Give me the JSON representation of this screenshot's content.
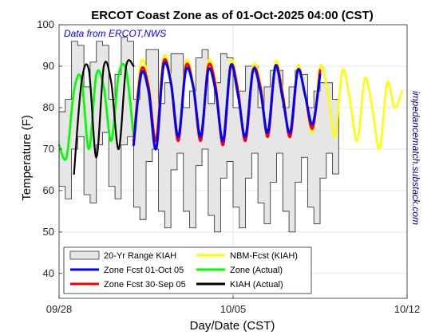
{
  "chart_data": {
    "type": "line",
    "title": "ERCOT Coast Zone as of 01-Oct-2025 04:00 (CST)",
    "xlabel": "Day/Date (CST)",
    "ylabel": "Temperature (F)",
    "annotation": "Data from ERCOT,NWS",
    "side_text": "impedancematch.substack.com",
    "x_ticks": [
      "09/28",
      "10/05",
      "10/12"
    ],
    "y_ticks": [
      40,
      50,
      60,
      70,
      80,
      90,
      100
    ],
    "xlim_days": [
      0,
      14
    ],
    "ylim": [
      34,
      100
    ],
    "grid": true,
    "legend_position": "bottom-left",
    "legend": [
      {
        "label": "20-Yr Range KIAH",
        "kind": "patch",
        "color": "#e6e6e6"
      },
      {
        "label": "Zone Fcst 01-Oct 05",
        "kind": "line",
        "color": "#0000ff"
      },
      {
        "label": "Zone Fcst 30-Sep 05",
        "kind": "line",
        "color": "#ff0000"
      },
      {
        "label": "NBM-Fcst (KIAH)",
        "kind": "line",
        "color": "#ffff00"
      },
      {
        "label": "Zone (Actual)",
        "kind": "line",
        "color": "#00ff00"
      },
      {
        "label": "KIAH (Actual)",
        "kind": "line",
        "color": "#000000"
      }
    ],
    "series": [
      {
        "name": "20-Yr Range KIAH",
        "kind": "range",
        "color": "#e6e6e6",
        "x": [
          0,
          0.25,
          0.5,
          0.75,
          1,
          1.25,
          1.5,
          1.75,
          2,
          2.25,
          2.5,
          2.75,
          3,
          3.25,
          3.5,
          3.75,
          4,
          4.25,
          4.5,
          4.75,
          5,
          5.25,
          5.5,
          5.75,
          6,
          6.25,
          6.5,
          6.75,
          7,
          7.25,
          7.5,
          7.75,
          8,
          8.25,
          8.5,
          8.75,
          9,
          9.25,
          9.5,
          9.75,
          10,
          10.25,
          10.5,
          10.75,
          11
        ],
        "low": [
          61,
          58,
          70,
          73,
          59,
          57,
          71,
          74,
          61,
          58,
          71,
          73,
          56,
          53,
          67,
          70,
          55,
          51,
          65,
          69,
          55,
          51,
          66,
          70,
          54,
          50,
          63,
          67,
          56,
          51,
          63,
          69,
          57,
          52,
          62,
          69,
          55,
          50,
          62,
          68,
          56,
          52,
          63,
          69,
          64
        ],
        "high": [
          79,
          82,
          96,
          95,
          85,
          91,
          96,
          95,
          82,
          88,
          97,
          96,
          82,
          89,
          94,
          94,
          81,
          86,
          93,
          93,
          80,
          84,
          92,
          94,
          81,
          86,
          93,
          92,
          80,
          84,
          90,
          90,
          80,
          85,
          89,
          89,
          80,
          85,
          89,
          88,
          80,
          84,
          86,
          86,
          82
        ]
      },
      {
        "name": "Zone Fcst 01-Oct 05",
        "color": "#0000ff",
        "x": [
          3,
          3.3,
          3.6,
          3.9,
          4.2,
          4.5,
          4.8,
          5.1,
          5.4,
          5.7,
          6,
          6.3,
          6.6,
          6.9,
          7.2,
          7.5,
          7.8,
          8.1,
          8.4,
          8.7,
          9,
          9.3,
          9.6,
          9.9,
          10.2,
          10.5
        ],
        "values": [
          71,
          88,
          84,
          70,
          90,
          86,
          73,
          89,
          85,
          73,
          89,
          84,
          72,
          90,
          83,
          73,
          89,
          84,
          74,
          90,
          82,
          74,
          89,
          83,
          76,
          88
        ]
      },
      {
        "name": "Zone Fcst 30-Sep 05",
        "color": "#ff0000",
        "x": [
          3,
          3.3,
          3.6,
          3.9,
          4.2,
          4.5,
          4.8,
          5.1,
          5.4,
          5.7,
          6,
          6.3,
          6.6,
          6.9,
          7.2,
          7.5,
          7.8,
          8.1,
          8.4,
          8.7,
          9,
          9.3,
          9.6,
          9.9,
          10.2,
          10.5
        ],
        "values": [
          72,
          89,
          85,
          72,
          91,
          86,
          72,
          90,
          85,
          72,
          90,
          85,
          71,
          90,
          84,
          72,
          89,
          85,
          73,
          90,
          83,
          73,
          89,
          83,
          75,
          89
        ]
      },
      {
        "name": "NBM-Fcst (KIAH)",
        "color": "#ffff00",
        "x": [
          3,
          3.3,
          3.6,
          3.9,
          4.2,
          4.5,
          4.8,
          5.1,
          5.4,
          5.7,
          6,
          6.3,
          6.6,
          6.9,
          7.2,
          7.5,
          7.8,
          8.1,
          8.4,
          8.7,
          9,
          9.3,
          9.6,
          9.9,
          10.2,
          10.5,
          10.8,
          11.1,
          11.4,
          11.7,
          12,
          12.3,
          12.6,
          12.9,
          13.2,
          13.5,
          13.8
        ],
        "values": [
          73,
          91,
          86,
          73,
          92,
          87,
          73,
          91,
          86,
          73,
          91,
          86,
          72,
          91,
          85,
          73,
          90,
          86,
          73,
          91,
          84,
          73,
          90,
          83,
          74,
          90,
          84,
          73,
          89,
          82,
          72,
          87,
          80,
          70,
          86,
          80,
          84
        ]
      },
      {
        "name": "Zone (Actual)",
        "color": "#00ff00",
        "x": [
          0,
          0.3,
          0.6,
          0.9,
          1.2,
          1.5,
          1.8,
          2.1,
          2.4,
          2.7,
          3
        ],
        "values": [
          71,
          68,
          84,
          87,
          70,
          88,
          85,
          72,
          88,
          89,
          73
        ]
      },
      {
        "name": "KIAH (Actual)",
        "color": "#000000",
        "x": [
          0.6,
          0.9,
          1.2,
          1.5,
          1.8,
          2.1,
          2.4,
          2.7,
          3
        ],
        "values": [
          64,
          86,
          89,
          68,
          90,
          86,
          70,
          90,
          90
        ]
      }
    ]
  }
}
